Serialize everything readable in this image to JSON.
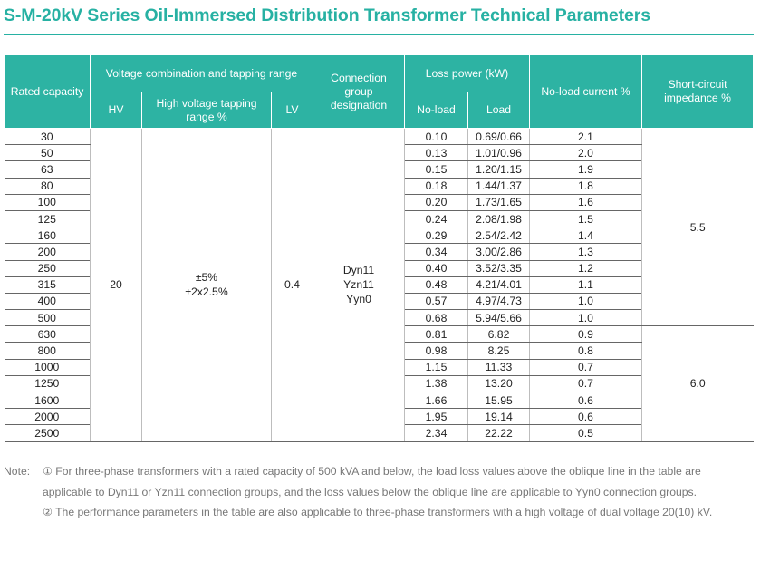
{
  "title": "S-M-20kV Series Oil-Immersed Distribution Transformer Technical Parameters",
  "headers": {
    "rated_capacity": "Rated capacity",
    "voltage_group": "Voltage combination and tapping range",
    "hv": "HV",
    "hv_tap": "High voltage tapping range %",
    "lv": "LV",
    "connection": "Connection group designation",
    "loss_power": "Loss power (kW)",
    "no_load": "No-load",
    "load": "Load",
    "no_load_current": "No-load current %",
    "short_circuit": "Short-circuit impedance %"
  },
  "merged": {
    "hv": "20",
    "tap_1": "±5%",
    "tap_2": "±2x2.5%",
    "lv": "0.4",
    "conn_1": "Dyn11",
    "conn_2": "Yzn11",
    "conn_3": "Yyn0",
    "impedance_1": "5.5",
    "impedance_2": "6.0"
  },
  "rows": [
    {
      "capacity": "30",
      "no_load": "0.10",
      "load": "0.69/0.66",
      "current": "2.1"
    },
    {
      "capacity": "50",
      "no_load": "0.13",
      "load": "1.01/0.96",
      "current": "2.0"
    },
    {
      "capacity": "63",
      "no_load": "0.15",
      "load": "1.20/1.15",
      "current": "1.9"
    },
    {
      "capacity": "80",
      "no_load": "0.18",
      "load": "1.44/1.37",
      "current": "1.8"
    },
    {
      "capacity": "100",
      "no_load": "0.20",
      "load": "1.73/1.65",
      "current": "1.6"
    },
    {
      "capacity": "125",
      "no_load": "0.24",
      "load": "2.08/1.98",
      "current": "1.5"
    },
    {
      "capacity": "160",
      "no_load": "0.29",
      "load": "2.54/2.42",
      "current": "1.4"
    },
    {
      "capacity": "200",
      "no_load": "0.34",
      "load": "3.00/2.86",
      "current": "1.3"
    },
    {
      "capacity": "250",
      "no_load": "0.40",
      "load": "3.52/3.35",
      "current": "1.2"
    },
    {
      "capacity": "315",
      "no_load": "0.48",
      "load": "4.21/4.01",
      "current": "1.1"
    },
    {
      "capacity": "400",
      "no_load": "0.57",
      "load": "4.97/4.73",
      "current": "1.0"
    },
    {
      "capacity": "500",
      "no_load": "0.68",
      "load": "5.94/5.66",
      "current": "1.0"
    },
    {
      "capacity": "630",
      "no_load": "0.81",
      "load": "6.82",
      "current": "0.9"
    },
    {
      "capacity": "800",
      "no_load": "0.98",
      "load": "8.25",
      "current": "0.8"
    },
    {
      "capacity": "1000",
      "no_load": "1.15",
      "load": "11.33",
      "current": "0.7"
    },
    {
      "capacity": "1250",
      "no_load": "1.38",
      "load": "13.20",
      "current": "0.7"
    },
    {
      "capacity": "1600",
      "no_load": "1.66",
      "load": "15.95",
      "current": "0.6"
    },
    {
      "capacity": "2000",
      "no_load": "1.95",
      "load": "19.14",
      "current": "0.6"
    },
    {
      "capacity": "2500",
      "no_load": "2.34",
      "load": "22.22",
      "current": "0.5"
    }
  ],
  "note": {
    "label": "Note:",
    "item_1": "① For three-phase transformers with a rated capacity of 500 kVA and below, the load loss values above the oblique line in the table are applicable to Dyn11 or Yzn11 connection groups, and the loss values below the oblique line are applicable to Yyn0 connection groups.",
    "item_2": "② The performance parameters in the table are also applicable to three-phase transformers with a high voltage of dual voltage 20(10) kV."
  },
  "colors": {
    "header_bg": "#2db3a3",
    "title": "#27b1a3",
    "note_text": "#777777"
  }
}
